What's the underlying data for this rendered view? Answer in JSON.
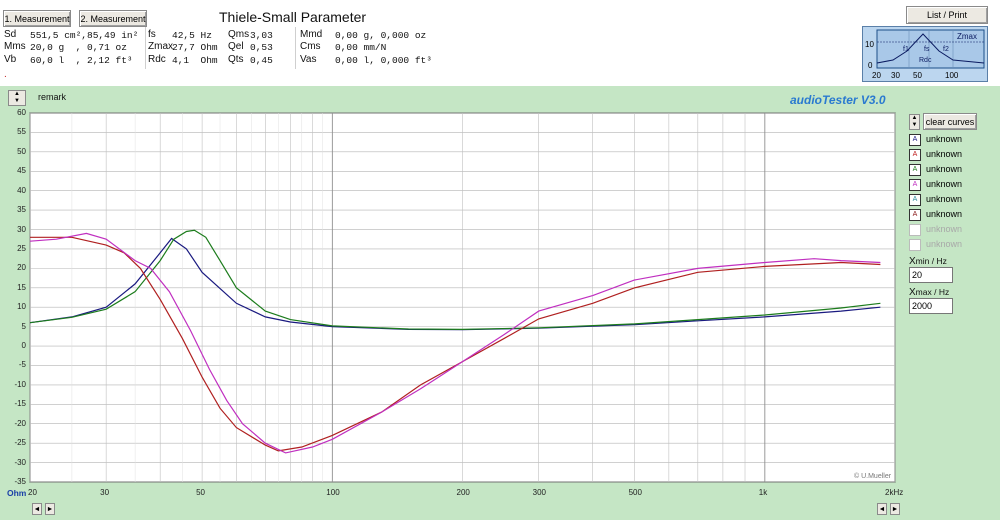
{
  "header": {
    "measurement1_label": "1. Measurement",
    "measurement2_label": "2. Measurement",
    "title": "Thiele-Small Parameter",
    "list_print_label": "List / Print",
    "dot": "."
  },
  "params": {
    "col1": [
      {
        "name": "Sd",
        "value": "551,5 cm²,85,49 in²"
      },
      {
        "name": "Mms",
        "value": "20,0 g  , 0,71 oz"
      },
      {
        "name": "Vb",
        "value": "60,0 l  , 2,12 ft³"
      }
    ],
    "col2": [
      {
        "name": "fs",
        "value": "42,5 Hz"
      },
      {
        "name": "Zmax",
        "value": "27,7 Ohm"
      },
      {
        "name": "Rdc",
        "value": "4,1  Ohm"
      }
    ],
    "col3": [
      {
        "name": "Qms",
        "value": "3,03"
      },
      {
        "name": "Qel",
        "value": "0,53"
      },
      {
        "name": "Qts",
        "value": "0,45"
      }
    ],
    "col4": [
      {
        "name": "Mmd",
        "value": "0,00 g, 0,000 oz"
      },
      {
        "name": "Cms",
        "value": "0,00 mm/N"
      },
      {
        "name": "Vas",
        "value": "0,00 l, 0,000 ft³"
      }
    ]
  },
  "thumbnail": {
    "zmax": "Zmax",
    "f1": "f1",
    "fs": "fs",
    "f2": "f2",
    "rdc": "Rdc",
    "y_top": "10",
    "y_bottom": "0",
    "x_labels": [
      "20",
      "30",
      "50",
      "100"
    ]
  },
  "toolbar": {
    "remark_label": "remark",
    "app_title": "audioTester  V3.0",
    "clear_label": "clear curves"
  },
  "chart_data": {
    "type": "line",
    "x_scale": "log",
    "xlim": [
      20,
      2000
    ],
    "ylim": [
      -35,
      60
    ],
    "y_ticks": [
      60,
      55,
      50,
      45,
      40,
      35,
      30,
      25,
      20,
      15,
      10,
      5,
      0,
      -5,
      -10,
      -15,
      -20,
      -25,
      -30,
      -35
    ],
    "x_ticks": [
      {
        "v": 20,
        "label": "20"
      },
      {
        "v": 30,
        "label": "30"
      },
      {
        "v": 50,
        "label": "50"
      },
      {
        "v": 100,
        "label": "100"
      },
      {
        "v": 200,
        "label": "200"
      },
      {
        "v": 300,
        "label": "300"
      },
      {
        "v": 500,
        "label": "500"
      },
      {
        "v": 1000,
        "label": "1k"
      },
      {
        "v": 2000,
        "label": "2kHz"
      }
    ],
    "y_unit": "Ohm",
    "credit": "© U.Mueller",
    "grid": true,
    "series": [
      {
        "color": "#1a1a80",
        "points": [
          [
            20,
            6
          ],
          [
            25,
            7.5
          ],
          [
            30,
            10
          ],
          [
            35,
            16
          ],
          [
            40,
            24
          ],
          [
            42.5,
            27.7
          ],
          [
            46,
            25
          ],
          [
            50,
            19
          ],
          [
            60,
            11
          ],
          [
            70,
            7.5
          ],
          [
            80,
            6.2
          ],
          [
            100,
            5
          ],
          [
            150,
            4.3
          ],
          [
            200,
            4.2
          ],
          [
            300,
            4.6
          ],
          [
            500,
            5.5
          ],
          [
            700,
            6.5
          ],
          [
            1000,
            7.5
          ],
          [
            1500,
            9
          ],
          [
            1850,
            10
          ]
        ]
      },
      {
        "color": "#1c7c1c",
        "points": [
          [
            20,
            6
          ],
          [
            25,
            7.4
          ],
          [
            30,
            9.5
          ],
          [
            35,
            14
          ],
          [
            40,
            22
          ],
          [
            43,
            27.5
          ],
          [
            46,
            29.5
          ],
          [
            48,
            29.8
          ],
          [
            51,
            28
          ],
          [
            55,
            22
          ],
          [
            60,
            15
          ],
          [
            70,
            9
          ],
          [
            80,
            6.8
          ],
          [
            100,
            5.2
          ],
          [
            150,
            4.4
          ],
          [
            200,
            4.3
          ],
          [
            300,
            4.7
          ],
          [
            500,
            5.7
          ],
          [
            700,
            6.8
          ],
          [
            1000,
            8
          ],
          [
            1500,
            9.8
          ],
          [
            1850,
            11
          ]
        ]
      },
      {
        "color": "#b02020",
        "points": [
          [
            20,
            28
          ],
          [
            25,
            28
          ],
          [
            30,
            26
          ],
          [
            33,
            24
          ],
          [
            36,
            20
          ],
          [
            40,
            12
          ],
          [
            45,
            2
          ],
          [
            50,
            -8
          ],
          [
            55,
            -16
          ],
          [
            60,
            -21
          ],
          [
            70,
            -25.5
          ],
          [
            75,
            -27
          ],
          [
            85,
            -26
          ],
          [
            100,
            -23
          ],
          [
            130,
            -17
          ],
          [
            160,
            -10
          ],
          [
            200,
            -4
          ],
          [
            250,
            2
          ],
          [
            300,
            7
          ],
          [
            400,
            11
          ],
          [
            500,
            15
          ],
          [
            700,
            19
          ],
          [
            1000,
            20.5
          ],
          [
            1500,
            21.5
          ],
          [
            1850,
            21
          ]
        ]
      },
      {
        "color": "#c02fc0",
        "points": [
          [
            20,
            27
          ],
          [
            23,
            27.5
          ],
          [
            27,
            29
          ],
          [
            30,
            27.5
          ],
          [
            35,
            22
          ],
          [
            38,
            20
          ],
          [
            42,
            14
          ],
          [
            47,
            4
          ],
          [
            52,
            -6
          ],
          [
            57,
            -14
          ],
          [
            62,
            -20
          ],
          [
            70,
            -25
          ],
          [
            78,
            -27.5
          ],
          [
            90,
            -26
          ],
          [
            100,
            -24
          ],
          [
            130,
            -17
          ],
          [
            160,
            -11
          ],
          [
            200,
            -4
          ],
          [
            250,
            3
          ],
          [
            300,
            9
          ],
          [
            400,
            13
          ],
          [
            500,
            17
          ],
          [
            700,
            20
          ],
          [
            1000,
            21.5
          ],
          [
            1300,
            22.5
          ],
          [
            1500,
            22
          ],
          [
            1850,
            21.5
          ]
        ]
      }
    ]
  },
  "legend": [
    {
      "label": "unknown",
      "symbol": "A",
      "color": "#1a1a80",
      "enabled": true
    },
    {
      "label": "unknown",
      "symbol": "A",
      "color": "#c02020",
      "enabled": true
    },
    {
      "label": "unknown",
      "symbol": "A",
      "color": "#1c7c1c",
      "enabled": true
    },
    {
      "label": "unknown",
      "symbol": "A",
      "color": "#c02fc0",
      "enabled": true
    },
    {
      "label": "unknown",
      "symbol": "A",
      "color": "#2a8c9c",
      "enabled": true
    },
    {
      "label": "unknown",
      "symbol": "A",
      "color": "#8a1a1a",
      "enabled": true
    },
    {
      "label": "unknown",
      "symbol": "",
      "color": "#aaaaaa",
      "enabled": false
    },
    {
      "label": "unknown",
      "symbol": "",
      "color": "#aaaaaa",
      "enabled": false
    }
  ],
  "range": {
    "xmin_label": "min / Hz",
    "xmin_value": "20",
    "xmax_label": "max / Hz",
    "xmax_value": "2000",
    "x_prefix": "X"
  },
  "scroll": {
    "left": "◄",
    "right": "►",
    "up": "▲",
    "down": "▼"
  }
}
